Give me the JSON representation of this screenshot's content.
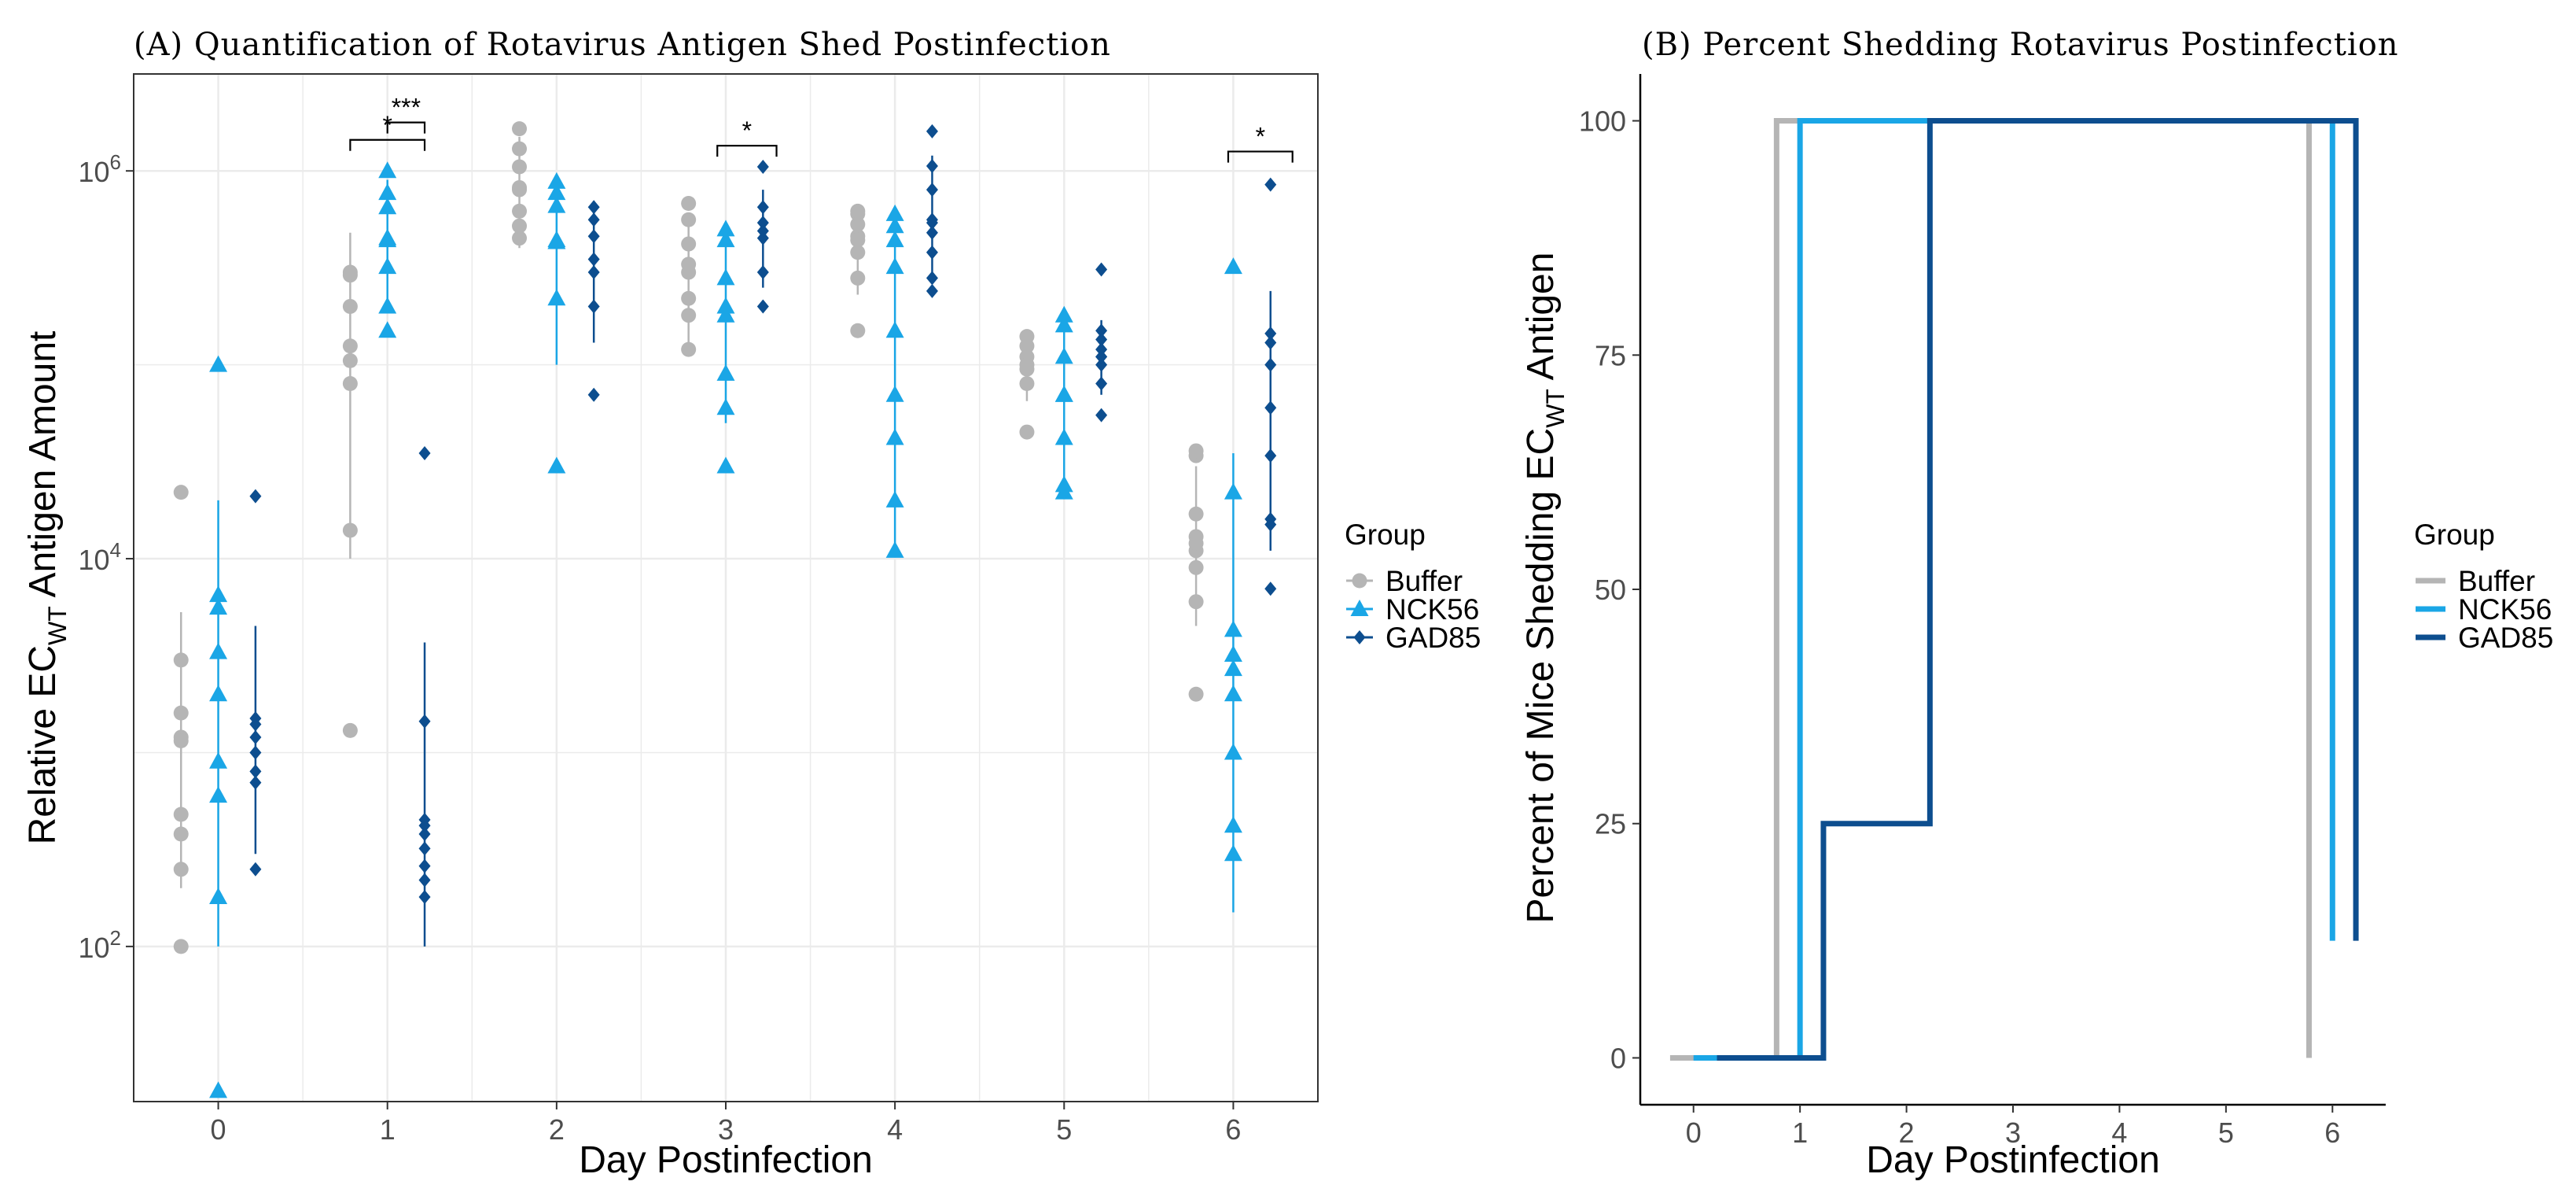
{
  "colors": {
    "buffer": "#b5b5b5",
    "nck56": "#1aa6e6",
    "gad85": "#0d4e8f",
    "grid": "#ebebeb",
    "frame": "#333333"
  },
  "chart_data": [
    {
      "type": "scatter",
      "title": "(A) Quantification of Rotavirus Antigen Shed Postinfection",
      "xlabel": "Day Postinfection",
      "ylabel_main": "Relative EC",
      "ylabel_sub": "WT",
      "ylabel_rest": " Antigen Amount",
      "y_scale": "log10",
      "ylim_log10": [
        1.2,
        6.5
      ],
      "xlim": [
        -0.5,
        6.5
      ],
      "x_ticks": [
        0,
        1,
        2,
        3,
        4,
        5,
        6
      ],
      "y_ticks": [
        {
          "log": 2,
          "base": "10",
          "exp": "2"
        },
        {
          "log": 4,
          "base": "10",
          "exp": "4"
        },
        {
          "log": 6,
          "base": "10",
          "exp": "6"
        }
      ],
      "legend_title": "Group",
      "series": [
        {
          "name": "Buffer",
          "key": "buffer",
          "offset": -0.22,
          "shape": "circle",
          "days": [
            {
              "day": 0,
              "values": [
                100,
                250,
                380,
                480,
                1200,
                1600,
                3000,
                22000
              ],
              "mean": 1150,
              "lo": 200,
              "hi": 5300
            },
            {
              "day": 1,
              "values": [
                1300,
                14000,
                80000,
                125000,
                200000,
                290000,
                300000
              ],
              "mean": 105000,
              "lo": 10000,
              "hi": 480000
            },
            {
              "day": 2,
              "values": [
                450000,
                520000,
                620000,
                820000,
                1050000,
                1300000,
                1650000
              ],
              "mean": 800000,
              "lo": 400000,
              "hi": 1500000
            },
            {
              "day": 3,
              "values": [
                120000,
                180000,
                220000,
                300000,
                420000,
                560000,
                680000
              ],
              "mean": 330000,
              "lo": 130000,
              "hi": 600000
            },
            {
              "day": 4,
              "values": [
                150000,
                280000,
                380000,
                460000,
                530000,
                600000,
                620000
              ],
              "mean": 440000,
              "lo": 230000,
              "hi": 620000
            },
            {
              "day": 5,
              "values": [
                45000,
                80000,
                95000,
                110000,
                125000,
                140000
              ],
              "mean": 100000,
              "lo": 65000,
              "hi": 135000
            },
            {
              "day": 6,
              "values": [
                2000,
                6000,
                9000,
                11000,
                13000,
                17000,
                34000,
                36000
              ],
              "mean": 12000,
              "lo": 4500,
              "hi": 30000
            }
          ]
        },
        {
          "name": "NCK56",
          "key": "nck56",
          "offset": 0,
          "shape": "triangle",
          "days": [
            {
              "day": 0,
              "values": [
                18,
                180,
                600,
                900,
                3300,
                5600,
                6500,
                100000
              ],
              "mean": 2000,
              "lo": 100,
              "hi": 20000
            },
            {
              "day": 1,
              "values": [
                150000,
                200000,
                320000,
                440000,
                650000,
                770000,
                1000000
              ],
              "mean": 450000,
              "lo": 200000,
              "hi": 900000
            },
            {
              "day": 2,
              "values": [
                30000,
                220000,
                440000,
                660000,
                770000,
                880000
              ],
              "mean": 430000,
              "lo": 100000,
              "hi": 900000
            },
            {
              "day": 3,
              "values": [
                30000,
                60000,
                90000,
                180000,
                280000,
                440000,
                500000
              ],
              "mean": 200000,
              "lo": 50000,
              "hi": 500000
            },
            {
              "day": 4,
              "values": [
                11000,
                20000,
                42000,
                70000,
                320000,
                440000,
                520000,
                600000
              ],
              "mean": 150000,
              "lo": 11000,
              "hi": 600000
            },
            {
              "day": 5,
              "values": [
                22000,
                24000,
                42000,
                70000,
                110000,
                160000,
                180000
              ],
              "mean": 70000,
              "lo": 24000,
              "hi": 180000
            },
            {
              "day": 6,
              "values": [
                300,
                420,
                1000,
                2000,
                2700,
                4300,
                22000,
                320000
              ],
              "mean": 3200,
              "lo": 150,
              "hi": 35000
            }
          ]
        },
        {
          "name": "GAD85",
          "key": "gad85",
          "offset": 0.22,
          "shape": "diamond",
          "days": [
            {
              "day": 0,
              "values": [
                250,
                700,
                800,
                1200,
                1400,
                1500,
                21000
              ],
              "mean": 1000,
              "lo": 300,
              "hi": 4500
            },
            {
              "day": 1,
              "values": [
                180,
                220,
                260,
                320,
                380,
                420,
                1450,
                35000
              ],
              "mean": 450,
              "lo": 100,
              "hi": 3700
            },
            {
              "day": 2,
              "values": [
                70000,
                200000,
                300000,
                460000,
                560000,
                650000
              ],
              "mean": 350000,
              "lo": 130000,
              "hi": 700000
            },
            {
              "day": 3,
              "values": [
                200000,
                300000,
                450000,
                540000,
                650000,
                1050000
              ],
              "mean": 490000,
              "lo": 250000,
              "hi": 800000
            },
            {
              "day": 4,
              "values": [
                240000,
                280000,
                380000,
                480000,
                540000,
                800000,
                1060000,
                1600000
              ],
              "mean": 560000,
              "lo": 280000,
              "hi": 1200000
            },
            {
              "day": 5,
              "values": [
                55000,
                80000,
                100000,
                110000,
                120000,
                135000,
                150000,
                310000
              ],
              "mean": 110000,
              "lo": 70000,
              "hi": 170000
            },
            {
              "day": 6,
              "values": [
                7000,
                15000,
                16000,
                34000,
                100000,
                130000,
                145000,
                850000
              ],
              "mean": 60000,
              "lo": 11000,
              "hi": 240000
            }
          ]
        }
      ],
      "significance": [
        {
          "label": "*",
          "x1": 0.78,
          "x2": 1.22,
          "bracket_log": 6.16
        },
        {
          "label": "***",
          "x1": 1.0,
          "x2": 1.22,
          "bracket_log": 6.25
        },
        {
          "label": "*",
          "x1": 2.95,
          "x2": 3.3,
          "bracket_log": 6.13
        },
        {
          "label": "*",
          "x1": 5.97,
          "x2": 6.35,
          "bracket_log": 6.1
        }
      ]
    },
    {
      "type": "line",
      "step": true,
      "title": "(B) Percent Shedding Rotavirus Postinfection",
      "xlabel": "Day Postinfection",
      "ylabel_main": "Percent of Mice Shedding EC",
      "ylabel_sub": "WT",
      "ylabel_rest": " Antigen",
      "xlim": [
        -0.5,
        6.5
      ],
      "ylim": [
        -5,
        105
      ],
      "x_ticks": [
        0,
        1,
        2,
        3,
        4,
        5,
        6
      ],
      "y_ticks": [
        0,
        25,
        50,
        75,
        100
      ],
      "legend_title": "Group",
      "series": [
        {
          "name": "Buffer",
          "key": "buffer",
          "points": [
            [
              -0.22,
              0
            ],
            [
              0.78,
              0
            ],
            [
              0.78,
              100
            ],
            [
              5.78,
              100
            ],
            [
              5.78,
              0
            ]
          ]
        },
        {
          "name": "NCK56",
          "key": "nck56",
          "points": [
            [
              0,
              0
            ],
            [
              1.0,
              0
            ],
            [
              1.0,
              100
            ],
            [
              6.0,
              100
            ],
            [
              6.0,
              12.5
            ]
          ]
        },
        {
          "name": "GAD85",
          "key": "gad85",
          "points": [
            [
              0.22,
              0
            ],
            [
              1.22,
              0
            ],
            [
              1.22,
              25
            ],
            [
              2.22,
              25
            ],
            [
              2.22,
              100
            ],
            [
              6.22,
              100
            ],
            [
              6.22,
              12.5
            ]
          ]
        }
      ]
    }
  ]
}
